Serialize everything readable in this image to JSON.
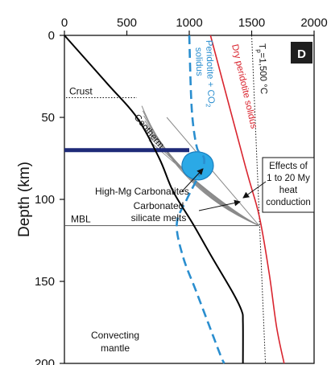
{
  "panel_label": "D",
  "chart_data": {
    "type": "line",
    "x_ticks": [
      "0",
      "500",
      "1000",
      "1500",
      "2000"
    ],
    "y_ticks": [
      "0",
      "50",
      "100",
      "150",
      "200"
    ],
    "ylabel": "Depth (km)",
    "xlim": [
      0,
      2000
    ],
    "ylim": [
      200,
      0
    ],
    "series": [
      {
        "name": "Geotherm",
        "color": "#000000",
        "points": [
          [
            0,
            0
          ],
          [
            350,
            30
          ],
          [
            580,
            50
          ],
          [
            760,
            75
          ],
          [
            870,
            95
          ],
          [
            1030,
            115
          ],
          [
            1180,
            135
          ],
          [
            1350,
            157
          ],
          [
            1420,
            168
          ],
          [
            1430,
            175
          ],
          [
            1430,
            200
          ]
        ]
      },
      {
        "name": "Peridotite + CO2 solidus",
        "color": "#2a8ecf",
        "dash": true,
        "points": [
          [
            1000,
            0
          ],
          [
            1020,
            45
          ],
          [
            1060,
            68
          ],
          [
            1100,
            72
          ],
          [
            1120,
            76
          ],
          [
            1100,
            82
          ],
          [
            980,
            100
          ],
          [
            900,
            115
          ],
          [
            950,
            135
          ],
          [
            1050,
            155
          ],
          [
            1150,
            175
          ],
          [
            1250,
            195
          ],
          [
            1280,
            200
          ]
        ]
      },
      {
        "name": "Dry peridotite solidus",
        "color": "#d9252f",
        "points": [
          [
            1170,
            0
          ],
          [
            1450,
            80
          ],
          [
            1560,
            110
          ],
          [
            1640,
            145
          ],
          [
            1700,
            178
          ],
          [
            1760,
            200
          ]
        ]
      }
    ],
    "reference_line": {
      "label_prefix": "T",
      "label_sub": "p",
      "label_suffix": "=1,500 °C",
      "x_start": 1500,
      "x_end": 1610
    },
    "annotations": {
      "crust": "Crust",
      "crust_depth": 38,
      "geotherm": "Geotherm",
      "high_mg": "High-Mg Carbonatites",
      "carbonated_line1": "Carbonated",
      "carbonated_line2": "silicate melts",
      "mbl": "MBL",
      "mbl_depth": 116,
      "effects_line1": "Effects of",
      "effects_line2": "1 to 20 My",
      "effects_line3": "heat",
      "effects_line4": "conduction",
      "convecting_line1": "Convecting",
      "convecting_line2": "mantle",
      "dry_label": "Dry peridotite solidus",
      "co2_label_1": "Peridotite + CO",
      "co2_label_sub": "2",
      "co2_label_2": "solidus"
    },
    "blue_bar_depth": 70,
    "colors": {
      "geotherm": "#000000",
      "co2_solidus": "#2a8ecf",
      "dry_solidus": "#d9252f",
      "melt_blob": "#2ba9e6",
      "lithosphere_bar": "#1e2a78",
      "fan": "#8a8a8a"
    }
  }
}
